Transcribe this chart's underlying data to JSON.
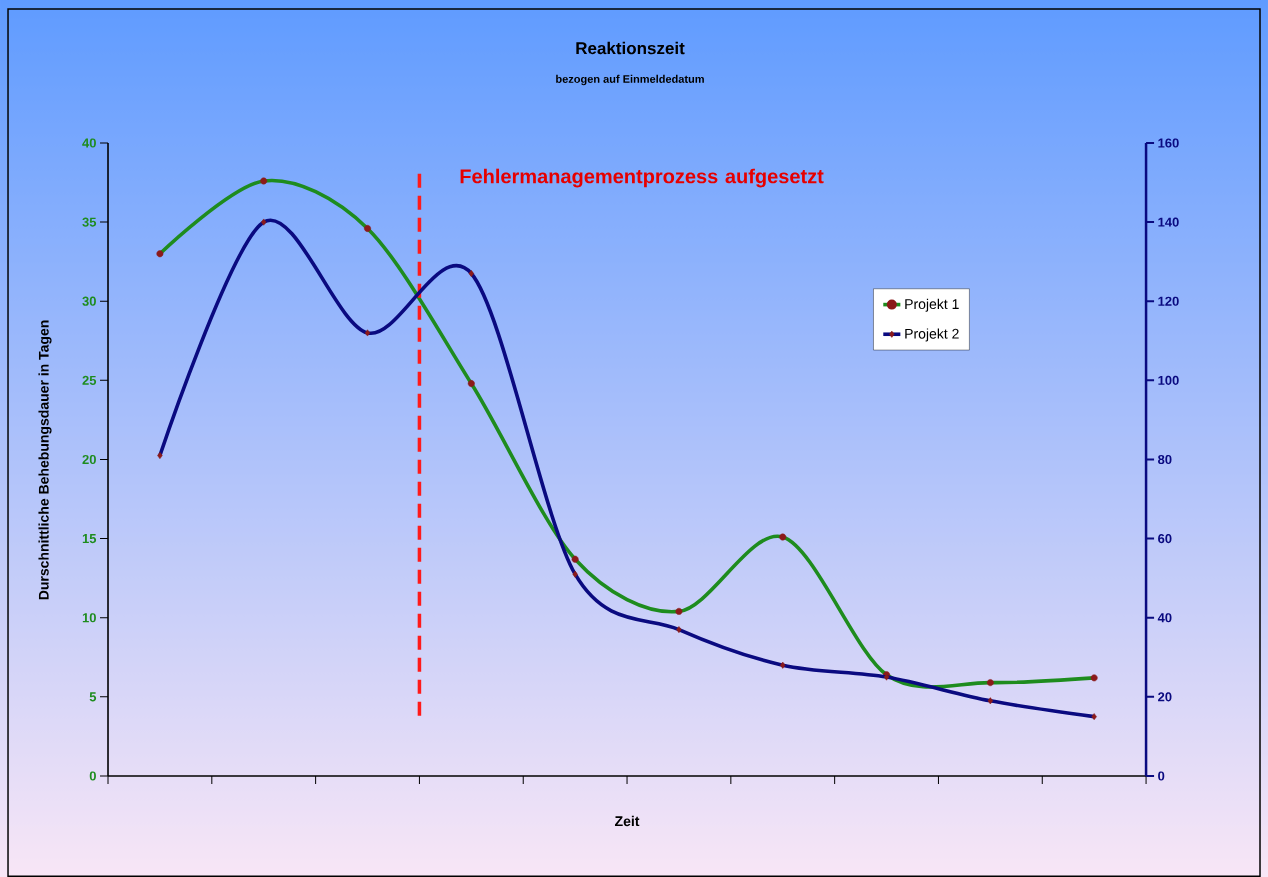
{
  "chart_data": {
    "type": "line",
    "title": "Reaktionszeit",
    "subtitle": "bezogen auf Einmeldedatum",
    "xlabel": "Zeit",
    "ylabel": "Durschnittliche Behebungsdauer in Tagen",
    "categories": [
      null,
      null,
      null,
      null,
      null,
      null,
      null,
      null,
      null,
      null
    ],
    "series": [
      {
        "name": "Projekt 1",
        "color": "#1e8c1e",
        "marker": "circle",
        "values": [
          33,
          37.6,
          34.6,
          24.8,
          13.7,
          10.4,
          15.1,
          6.4,
          5.9,
          6.2
        ]
      },
      {
        "name": "Projekt 2",
        "color": "#0a0a80",
        "marker": "diamond",
        "axis": "y2",
        "values": [
          81,
          140,
          112,
          127,
          51,
          37,
          28,
          25,
          19,
          15
        ]
      }
    ],
    "ylim": [
      0,
      40
    ],
    "yticks": [
      0,
      5,
      10,
      15,
      20,
      25,
      30,
      35,
      40
    ],
    "y2lim": [
      0,
      160
    ],
    "y2ticks": [
      0,
      20,
      40,
      60,
      80,
      100,
      120,
      140,
      160
    ],
    "annotations": [
      "Fehlermanagementprozess aufgesetzt"
    ],
    "legend": "right",
    "grid": false
  }
}
